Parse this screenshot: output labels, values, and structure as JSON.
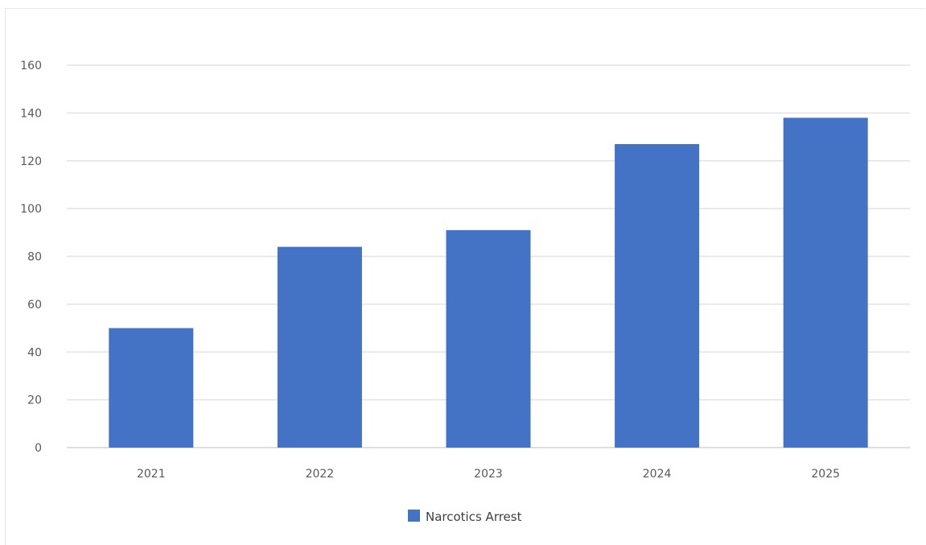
{
  "chart_data": {
    "type": "bar",
    "categories": [
      "2021",
      "2022",
      "2023",
      "2024",
      "2025"
    ],
    "series": [
      {
        "name": "Narcotics Arrest",
        "values": [
          50,
          84,
          91,
          127,
          138
        ],
        "color": "#4472c4"
      }
    ],
    "title": "",
    "xlabel": "",
    "ylabel": "",
    "ylim": [
      0,
      160
    ],
    "yticks": [
      "0",
      "20",
      "40",
      "60",
      "80",
      "100",
      "120",
      "140",
      "160"
    ],
    "grid": true,
    "legend": "bottom-center"
  }
}
